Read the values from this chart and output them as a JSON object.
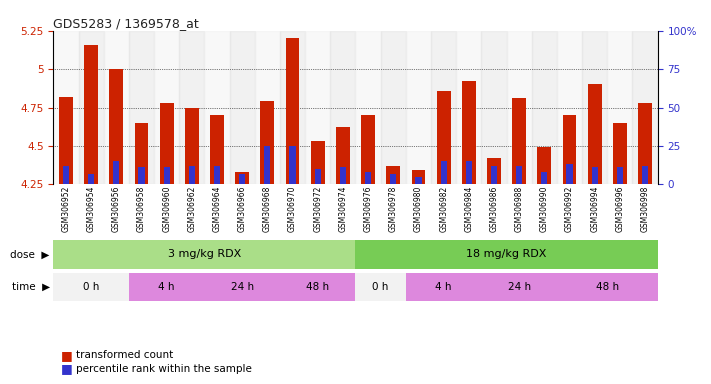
{
  "title": "GDS5283 / 1369578_at",
  "samples": [
    "GSM306952",
    "GSM306954",
    "GSM306956",
    "GSM306958",
    "GSM306960",
    "GSM306962",
    "GSM306964",
    "GSM306966",
    "GSM306968",
    "GSM306970",
    "GSM306972",
    "GSM306974",
    "GSM306976",
    "GSM306978",
    "GSM306980",
    "GSM306982",
    "GSM306984",
    "GSM306986",
    "GSM306988",
    "GSM306990",
    "GSM306992",
    "GSM306994",
    "GSM306996",
    "GSM306998"
  ],
  "red_values": [
    4.82,
    5.16,
    5.0,
    4.65,
    4.78,
    4.75,
    4.7,
    4.33,
    4.79,
    5.2,
    4.53,
    4.62,
    4.7,
    4.37,
    4.34,
    4.86,
    4.92,
    4.42,
    4.81,
    4.49,
    4.7,
    4.9,
    4.65,
    4.78
  ],
  "blue_values": [
    4.37,
    4.32,
    4.4,
    4.36,
    4.36,
    4.37,
    4.37,
    4.32,
    4.5,
    4.5,
    4.35,
    4.36,
    4.33,
    4.32,
    4.3,
    4.4,
    4.4,
    4.37,
    4.37,
    4.33,
    4.38,
    4.36,
    4.36,
    4.37
  ],
  "ymin": 4.25,
  "ymax": 5.25,
  "yticks": [
    4.25,
    4.5,
    4.75,
    5.0,
    5.25
  ],
  "ytick_labels": [
    "4.25",
    "4.5",
    "4.75",
    "5",
    "5.25"
  ],
  "red_color": "#cc2200",
  "blue_color": "#3333cc",
  "bar_width": 0.55,
  "left_label_color": "#cc2200",
  "right_label_color": "#3333cc",
  "dose_green1": "#aade88",
  "dose_green2": "#77cc55",
  "time_white": "#f2f2f2",
  "time_pink": "#dd88dd",
  "legend_red": "transformed count",
  "legend_blue": "percentile rank within the sample",
  "col_bg_light": "#eeeeee",
  "col_bg_dark": "#dddddd"
}
